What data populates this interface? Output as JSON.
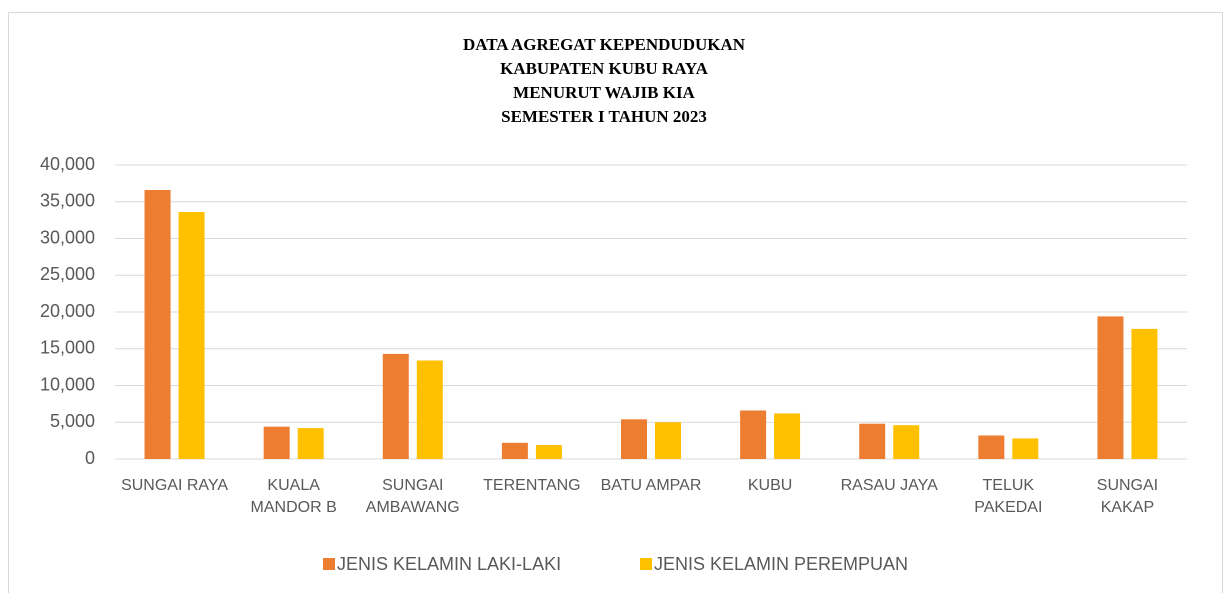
{
  "chart_data": {
    "type": "bar",
    "title": [
      "DATA AGREGAT KEPENDUDUKAN",
      "KABUPATEN KUBU RAYA",
      "MENURUT WAJIB KIA",
      "SEMESTER I TAHUN 2023"
    ],
    "categories": [
      [
        "SUNGAI RAYA"
      ],
      [
        "KUALA",
        "MANDOR B"
      ],
      [
        "SUNGAI",
        "AMBAWANG"
      ],
      [
        "TERENTANG"
      ],
      [
        "BATU AMPAR"
      ],
      [
        "KUBU"
      ],
      [
        "RASAU JAYA"
      ],
      [
        "TELUK",
        "PAKEDAI"
      ],
      [
        "SUNGAI",
        "KAKAP"
      ]
    ],
    "series": [
      {
        "name": "JENIS KELAMIN LAKI-LAKI",
        "color": "#ed7d31",
        "values": [
          36600,
          4400,
          14300,
          2200,
          5400,
          6600,
          4800,
          3200,
          19400
        ]
      },
      {
        "name": "JENIS KELAMIN PEREMPUAN",
        "color": "#ffc000",
        "values": [
          33600,
          4200,
          13400,
          1900,
          5000,
          6200,
          4600,
          2800,
          17700
        ]
      }
    ],
    "ylim": [
      0,
      40000
    ],
    "yticks": [
      0,
      {
        "value": 5000,
        "label": "5,000"
      },
      {
        "value": 10000,
        "label": "10,000"
      },
      {
        "value": 15000,
        "label": "15,000"
      },
      {
        "value": 20000,
        "label": "20,000"
      },
      {
        "value": 25000,
        "label": "25,000"
      },
      {
        "value": 30000,
        "label": "30,000"
      },
      {
        "value": 35000,
        "label": "35,000"
      },
      {
        "value": 40000,
        "label": "40,000"
      }
    ],
    "grid": true,
    "legend": "bottom"
  }
}
